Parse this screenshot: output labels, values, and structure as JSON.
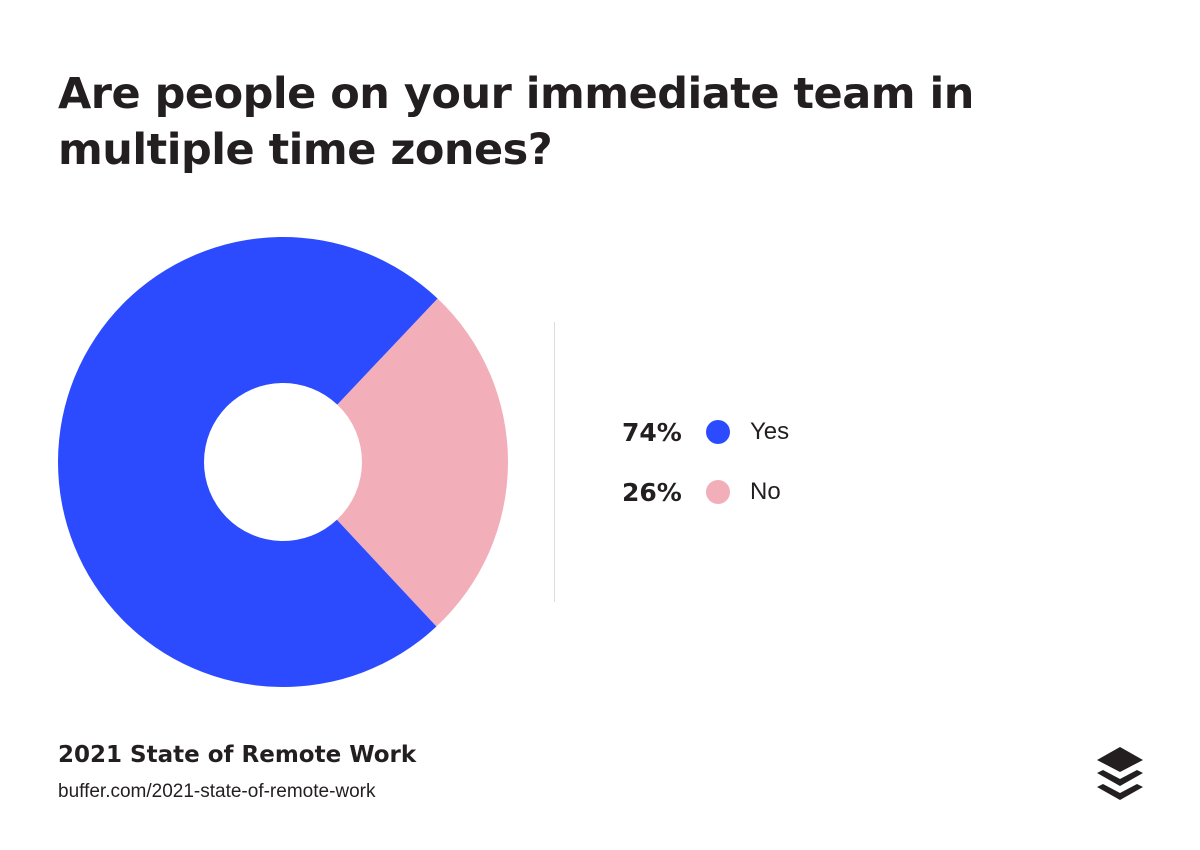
{
  "title": "Are people on your immediate team in multiple time zones?",
  "chart_data": {
    "type": "pie",
    "variant": "donut",
    "title": "Are people on your immediate team in multiple time zones?",
    "categories": [
      "Yes",
      "No"
    ],
    "values": [
      74,
      26
    ],
    "labels": [
      "74%",
      "26%"
    ],
    "colors": [
      "#2c4bff",
      "#f2aeb9"
    ],
    "legend": "right"
  },
  "source": {
    "title": "2021 State of Remote Work",
    "url": "buffer.com/2021-state-of-remote-work"
  },
  "logo": {
    "icon": "buffer-stack-icon",
    "color": "#231f20"
  }
}
